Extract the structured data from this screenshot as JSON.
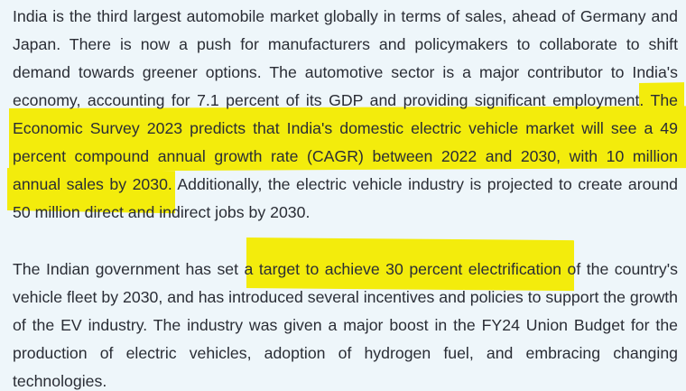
{
  "article": {
    "paragraph_1": "India is the third largest automobile market globally in terms of sales, ahead of Germany and Japan. There is now a push for manufacturers and policymakers to collaborate to shift demand towards greener options. The automotive sector is a major contributor to India's economy, accounting for 7.1 percent of its GDP and providing significant employment. The Economic Survey 2023 predicts that India's domestic electric vehicle market will see a 49 percent compound annual growth rate (CAGR) between 2022 and 2030, with 10 million annual sales by 2030. Additionally, the electric vehicle industry is projected to create around 50 million direct and indirect jobs by 2030.",
    "paragraph_2": "The Indian government has set a target to achieve 30 percent electrification of the country's vehicle fleet by 2030, and has introduced several incentives and policies to support the growth of the EV industry. The industry was given a major boost in the FY24 Union Budget for the production of electric vehicles, adoption of hydrogen fuel, and embracing changing technologies."
  },
  "colors": {
    "background": "#eef6fa",
    "text": "#2a2d35",
    "highlight": "#f3ec0c"
  }
}
